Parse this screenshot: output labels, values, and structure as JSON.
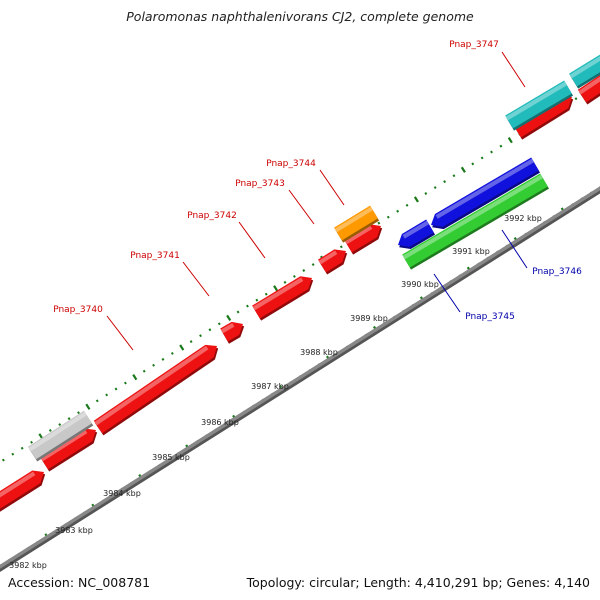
{
  "title": "Polaromonas naphthalenivorans CJ2, complete genome",
  "footer": {
    "accession": "Accession: NC_008781",
    "summary": "Topology: circular; Length: 4,410,291 bp; Genes: 4,140"
  },
  "colors": {
    "forward_gene": "#ee1111",
    "reverse_gene": "#1111dd",
    "orange_feature": "#ff9900",
    "grey_feature": "#c8c8c8",
    "cyan_feature": "#22bbbb",
    "green_feature": "#33cc33",
    "backbone": "#888888",
    "tick": "#1a7a1a",
    "forward_label": "#cc0000",
    "reverse_label": "#0000aa"
  },
  "scale_labels": [
    "3982 kbp",
    "3983 kbp",
    "3984 kbp",
    "3985 kbp",
    "3986 kbp",
    "3987 kbp",
    "3988 kbp",
    "3989 kbp",
    "3990 kbp",
    "3991 kbp",
    "3992 kbp"
  ],
  "gene_labels": {
    "forward": [
      "Pnap_3740",
      "Pnap_3741",
      "Pnap_3742",
      "Pnap_3743",
      "Pnap_3744",
      "Pnap_3747"
    ],
    "reverse": [
      "Pnap_3745",
      "Pnap_3746"
    ]
  }
}
